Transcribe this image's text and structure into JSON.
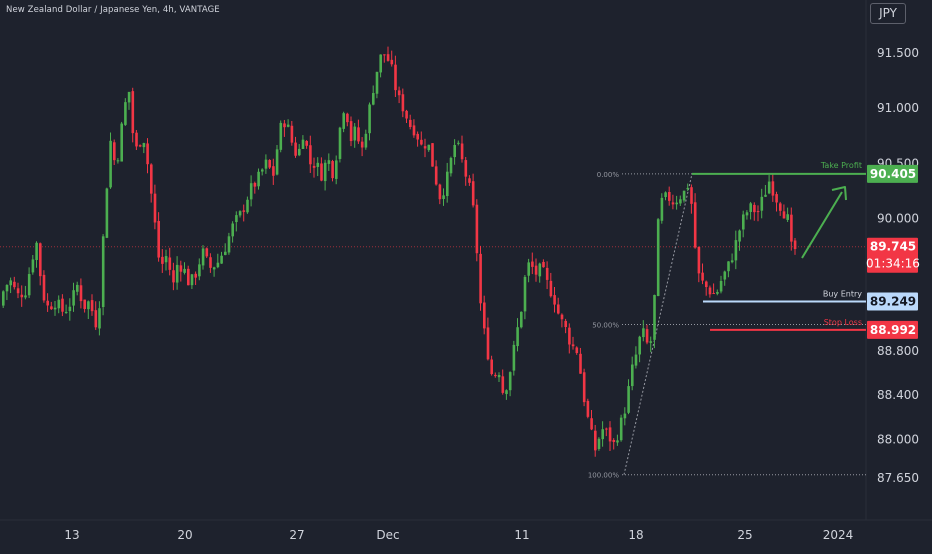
{
  "header": {
    "instrument_title": "New Zealand Dollar / Japanese Yen, 4h, VANTAGE",
    "currency": "JPY"
  },
  "colors": {
    "background": "#1e222d",
    "up": "#4caf50",
    "down": "#f23645",
    "text": "#d1d4dc",
    "take_profit": "#4caf50",
    "stop_loss": "#f23645",
    "buy_entry": "#bbd9fb"
  },
  "chart_data": {
    "type": "candlestick",
    "y_axis": {
      "ticks": [
        "91.500",
        "91.000",
        "90.500",
        "90.000",
        "88.800",
        "88.400",
        "88.000",
        "87.650"
      ],
      "range": [
        87.55,
        91.95
      ]
    },
    "x_axis": {
      "ticks": [
        "13",
        "20",
        "27",
        "Dec",
        "11",
        "18",
        "25",
        "2024"
      ]
    },
    "levels": {
      "take_profit": {
        "label": "Take Profit",
        "value": "90.405"
      },
      "current_price": {
        "value": "89.745",
        "countdown": "01:34:16"
      },
      "buy_entry": {
        "label": "Buy Entry",
        "value": "89.249"
      },
      "stop_loss": {
        "label": "Stop Loss",
        "value": "88.992"
      }
    },
    "fibonacci": {
      "levels": [
        "0.00%",
        "50.00%",
        "100.00%"
      ],
      "values": [
        90.405,
        89.04,
        87.68
      ]
    },
    "price_path": [
      [
        0,
        89.13
      ],
      [
        5,
        89.33
      ],
      [
        12,
        89.45
      ],
      [
        20,
        89.3
      ],
      [
        28,
        89.35
      ],
      [
        36,
        89.7
      ],
      [
        40,
        89.8
      ],
      [
        44,
        89.35
      ],
      [
        50,
        89.2
      ],
      [
        58,
        89.25
      ],
      [
        66,
        89.15
      ],
      [
        74,
        89.25
      ],
      [
        80,
        89.4
      ],
      [
        86,
        89.2
      ],
      [
        92,
        89.25
      ],
      [
        98,
        89.05
      ],
      [
        103,
        89.3
      ],
      [
        106,
        89.9
      ],
      [
        110,
        90.4
      ],
      [
        114,
        90.8
      ],
      [
        118,
        90.4
      ],
      [
        122,
        90.7
      ],
      [
        127,
        91.0
      ],
      [
        131,
        91.2
      ],
      [
        136,
        90.7
      ],
      [
        140,
        90.6
      ],
      [
        145,
        90.8
      ],
      [
        150,
        90.5
      ],
      [
        154,
        90.2
      ],
      [
        158,
        89.9
      ],
      [
        163,
        89.5
      ],
      [
        167,
        89.7
      ],
      [
        172,
        89.55
      ],
      [
        176,
        89.4
      ],
      [
        180,
        89.6
      ],
      [
        186,
        89.55
      ],
      [
        192,
        89.4
      ],
      [
        198,
        89.5
      ],
      [
        205,
        89.7
      ],
      [
        212,
        89.55
      ],
      [
        220,
        89.6
      ],
      [
        228,
        89.75
      ],
      [
        236,
        89.95
      ],
      [
        244,
        90.05
      ],
      [
        252,
        90.25
      ],
      [
        260,
        90.35
      ],
      [
        268,
        90.5
      ],
      [
        276,
        90.4
      ],
      [
        282,
        90.8
      ],
      [
        288,
        90.9
      ],
      [
        294,
        90.7
      ],
      [
        300,
        90.55
      ],
      [
        306,
        90.8
      ],
      [
        312,
        90.5
      ],
      [
        318,
        90.5
      ],
      [
        324,
        90.4
      ],
      [
        330,
        90.55
      ],
      [
        336,
        90.4
      ],
      [
        342,
        90.8
      ],
      [
        348,
        91.1
      ],
      [
        352,
        90.7
      ],
      [
        358,
        90.8
      ],
      [
        364,
        90.6
      ],
      [
        370,
        90.9
      ],
      [
        376,
        91.2
      ],
      [
        382,
        91.45
      ],
      [
        388,
        91.5
      ],
      [
        394,
        91.35
      ],
      [
        400,
        91.1
      ],
      [
        406,
        91.0
      ],
      [
        412,
        90.85
      ],
      [
        418,
        90.8
      ],
      [
        424,
        90.65
      ],
      [
        430,
        90.7
      ],
      [
        436,
        90.45
      ],
      [
        442,
        90.2
      ],
      [
        448,
        90.3
      ],
      [
        454,
        90.55
      ],
      [
        458,
        90.7
      ],
      [
        462,
        90.6
      ],
      [
        468,
        90.4
      ],
      [
        474,
        90.2
      ],
      [
        478,
        89.9
      ],
      [
        482,
        89.3
      ],
      [
        486,
        89.0
      ],
      [
        490,
        88.8
      ],
      [
        496,
        88.5
      ],
      [
        500,
        88.7
      ],
      [
        506,
        88.4
      ],
      [
        512,
        88.6
      ],
      [
        518,
        88.9
      ],
      [
        524,
        89.2
      ],
      [
        528,
        89.5
      ],
      [
        532,
        89.6
      ],
      [
        538,
        89.5
      ],
      [
        544,
        89.55
      ],
      [
        550,
        89.4
      ],
      [
        556,
        89.3
      ],
      [
        562,
        89.1
      ],
      [
        568,
        89.0
      ],
      [
        574,
        88.85
      ],
      [
        580,
        88.8
      ],
      [
        586,
        88.4
      ],
      [
        592,
        88.1
      ],
      [
        598,
        87.9
      ],
      [
        604,
        88.1
      ],
      [
        610,
        88.05
      ],
      [
        616,
        87.95
      ],
      [
        622,
        88.1
      ],
      [
        628,
        88.3
      ],
      [
        632,
        88.5
      ],
      [
        636,
        88.7
      ],
      [
        640,
        88.8
      ],
      [
        644,
        89.0
      ],
      [
        648,
        88.9
      ],
      [
        652,
        88.8
      ],
      [
        656,
        89.1
      ],
      [
        660,
        89.9
      ],
      [
        664,
        90.15
      ],
      [
        670,
        90.2
      ],
      [
        676,
        90.15
      ],
      [
        682,
        90.2
      ],
      [
        688,
        90.25
      ],
      [
        692,
        90.35
      ],
      [
        696,
        89.9
      ],
      [
        700,
        89.5
      ],
      [
        706,
        89.4
      ],
      [
        712,
        89.35
      ],
      [
        718,
        89.3
      ],
      [
        724,
        89.45
      ],
      [
        730,
        89.55
      ],
      [
        736,
        89.7
      ],
      [
        742,
        89.9
      ],
      [
        748,
        90.05
      ],
      [
        754,
        90.1
      ],
      [
        760,
        90.05
      ],
      [
        766,
        90.2
      ],
      [
        772,
        90.35
      ],
      [
        778,
        90.2
      ],
      [
        784,
        90.1
      ],
      [
        790,
        90.0
      ],
      [
        794,
        89.72
      ]
    ]
  }
}
